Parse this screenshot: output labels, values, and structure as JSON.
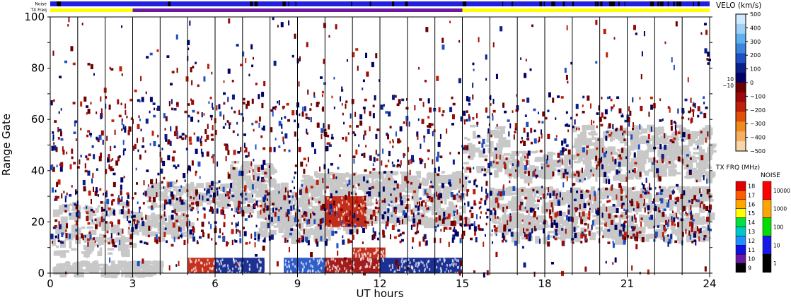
{
  "strips": {
    "noise_label": "Noise",
    "txfreq_label": "TX Freq"
  },
  "colors": {
    "ground_scatter": "#c8c8c8",
    "tx_freq_low": "#5a0a96",
    "tx_freq_high": "#ffff00",
    "noise_base": "#2020e0",
    "noise_dark": "#000000"
  },
  "chart_data": {
    "type": "heatmap",
    "title": "",
    "xlabel": "UT hours",
    "ylabel": "Range Gate",
    "xlim": [
      0,
      24
    ],
    "ylim": [
      0,
      100
    ],
    "x_ticks": [
      0,
      3,
      6,
      9,
      12,
      15,
      18,
      21,
      24
    ],
    "y_ticks": [
      0,
      20,
      40,
      60,
      80,
      100
    ],
    "hour_gridlines": true,
    "tx_freq_segments": [
      {
        "start": 0,
        "end": 3,
        "mhz": 15
      },
      {
        "start": 3,
        "end": 15,
        "mhz": 10
      },
      {
        "start": 15,
        "end": 24,
        "mhz": 15
      }
    ],
    "ground_scatter_bands": [
      {
        "x0": 0.0,
        "x1": 3.0,
        "y0": 8,
        "y1": 28
      },
      {
        "x0": 3.0,
        "x1": 5.0,
        "y0": 15,
        "y1": 24
      },
      {
        "x0": 3.5,
        "x1": 8.5,
        "y0": 26,
        "y1": 36
      },
      {
        "x0": 6.5,
        "x1": 8.0,
        "y0": 34,
        "y1": 44
      },
      {
        "x0": 7.5,
        "x1": 11.0,
        "y0": 14,
        "y1": 26
      },
      {
        "x0": 8.0,
        "x1": 15.0,
        "y0": 20,
        "y1": 32
      },
      {
        "x0": 9.0,
        "x1": 15.0,
        "y0": 32,
        "y1": 40
      },
      {
        "x0": 15.0,
        "x1": 16.5,
        "y0": 40,
        "y1": 58
      },
      {
        "x0": 16.0,
        "x1": 24.0,
        "y0": 14,
        "y1": 24
      },
      {
        "x0": 16.0,
        "x1": 24.0,
        "y0": 26,
        "y1": 34
      },
      {
        "x0": 16.5,
        "x1": 24.0,
        "y0": 38,
        "y1": 48
      },
      {
        "x0": 19.0,
        "x1": 24.0,
        "y0": 48,
        "y1": 58
      },
      {
        "x0": 0.0,
        "x1": 4.0,
        "y0": 1,
        "y1": 5
      }
    ],
    "velocity_bands": [
      {
        "x0": 5.0,
        "x1": 6.0,
        "y0": 0,
        "y1": 6,
        "velo": -150
      },
      {
        "x0": 6.0,
        "x1": 7.8,
        "y0": 0,
        "y1": 6,
        "velo": 120
      },
      {
        "x0": 8.5,
        "x1": 10.0,
        "y0": 0,
        "y1": 6,
        "velo": 150
      },
      {
        "x0": 10.0,
        "x1": 12.0,
        "y0": 0,
        "y1": 6,
        "velo": -120
      },
      {
        "x0": 12.0,
        "x1": 15.0,
        "y0": 0,
        "y1": 6,
        "velo": 110
      },
      {
        "x0": 11.0,
        "x1": 12.2,
        "y0": 6,
        "y1": 10,
        "velo": -150
      },
      {
        "x0": 10.0,
        "x1": 11.5,
        "y0": 18,
        "y1": 30,
        "velo": -160
      }
    ],
    "velocity_legend": {
      "title": "VELO (km/s)",
      "ticks": [
        500,
        400,
        300,
        200,
        100,
        0,
        -100,
        -200,
        -300,
        -400,
        -500
      ],
      "tick_labels": [
        "500",
        "400",
        "300",
        "200",
        "100",
        "0",
        "−100",
        "−200",
        "−300",
        "−400",
        "−500"
      ],
      "threshold_labels": [
        "10",
        "−10"
      ],
      "colors": [
        "#cfe9ff",
        "#9fd0f5",
        "#5fb0ee",
        "#3a86dd",
        "#1f4fc4",
        "#0a1f8a",
        "#000066",
        "#6e0000",
        "#9b0a0a",
        "#c0200a",
        "#e0500a",
        "#ee8a1e",
        "#f4b060",
        "#f8d6a8"
      ]
    },
    "txfreq_legend": {
      "title": "TX FRQ (MHz)",
      "labels": [
        "18",
        "17",
        "16",
        "15",
        "14",
        "13",
        "12",
        "11",
        "10",
        "9"
      ],
      "colors": [
        "#e00000",
        "#ff5a00",
        "#ffa500",
        "#ffff00",
        "#00e040",
        "#00c8c8",
        "#2090ff",
        "#1010e0",
        "#6a1aa0",
        "#000000"
      ]
    },
    "noise_legend": {
      "title": "NOISE",
      "labels": [
        "10000",
        "1000",
        "100",
        "10",
        "1"
      ],
      "colors": [
        "#ff0000",
        "#ffa500",
        "#00e000",
        "#1818e8",
        "#000000"
      ]
    }
  }
}
